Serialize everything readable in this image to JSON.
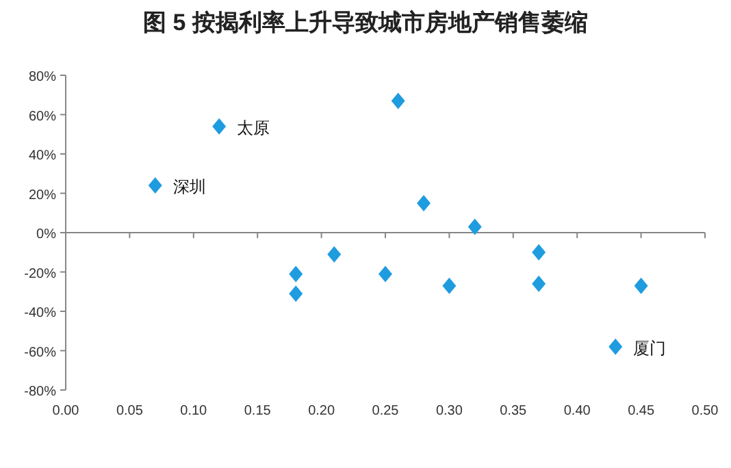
{
  "chart_data": {
    "type": "scatter",
    "title": "图 5  按揭利率上升导致城市房地产销售萎缩",
    "marker": "diamond",
    "series": [
      {
        "color": "#1f9ce0",
        "x": [
          0.07,
          0.12,
          0.18,
          0.18,
          0.21,
          0.25,
          0.26,
          0.28,
          0.3,
          0.32,
          0.37,
          0.37,
          0.43,
          0.45
        ],
        "values": [
          24,
          54,
          -21,
          -31,
          -11,
          -21,
          67,
          15,
          -27,
          3,
          -10,
          -26,
          -58,
          -27
        ]
      }
    ],
    "annotations": [
      {
        "text": "太原",
        "x": 0.12,
        "y": 54
      },
      {
        "text": "深圳",
        "x": 0.07,
        "y": 24
      },
      {
        "text": "厦门",
        "x": 0.43,
        "y": -58
      }
    ],
    "xlim": [
      0,
      0.5
    ],
    "xticks": [
      {
        "value": 0,
        "label": "0.00"
      },
      {
        "value": 0.05,
        "label": "0.05"
      },
      {
        "value": 0.1,
        "label": "0.10"
      },
      {
        "value": 0.15,
        "label": "0.15"
      },
      {
        "value": 0.2,
        "label": "0.20"
      },
      {
        "value": 0.25,
        "label": "0.25"
      },
      {
        "value": 0.3,
        "label": "0.30"
      },
      {
        "value": 0.35,
        "label": "0.35"
      },
      {
        "value": 0.4,
        "label": "0.40"
      },
      {
        "value": 0.45,
        "label": "0.45"
      },
      {
        "value": 0.5,
        "label": "0.50"
      }
    ],
    "ylim": [
      -80,
      80
    ],
    "yticks": [
      {
        "value": -80,
        "label": "-80%"
      },
      {
        "value": -60,
        "label": "-60%"
      },
      {
        "value": -40,
        "label": "-40%"
      },
      {
        "value": -20,
        "label": "-20%"
      },
      {
        "value": 0,
        "label": "0%"
      },
      {
        "value": 20,
        "label": "20%"
      },
      {
        "value": 40,
        "label": "40%"
      },
      {
        "value": 60,
        "label": "60%"
      },
      {
        "value": 80,
        "label": "80%"
      }
    ]
  }
}
